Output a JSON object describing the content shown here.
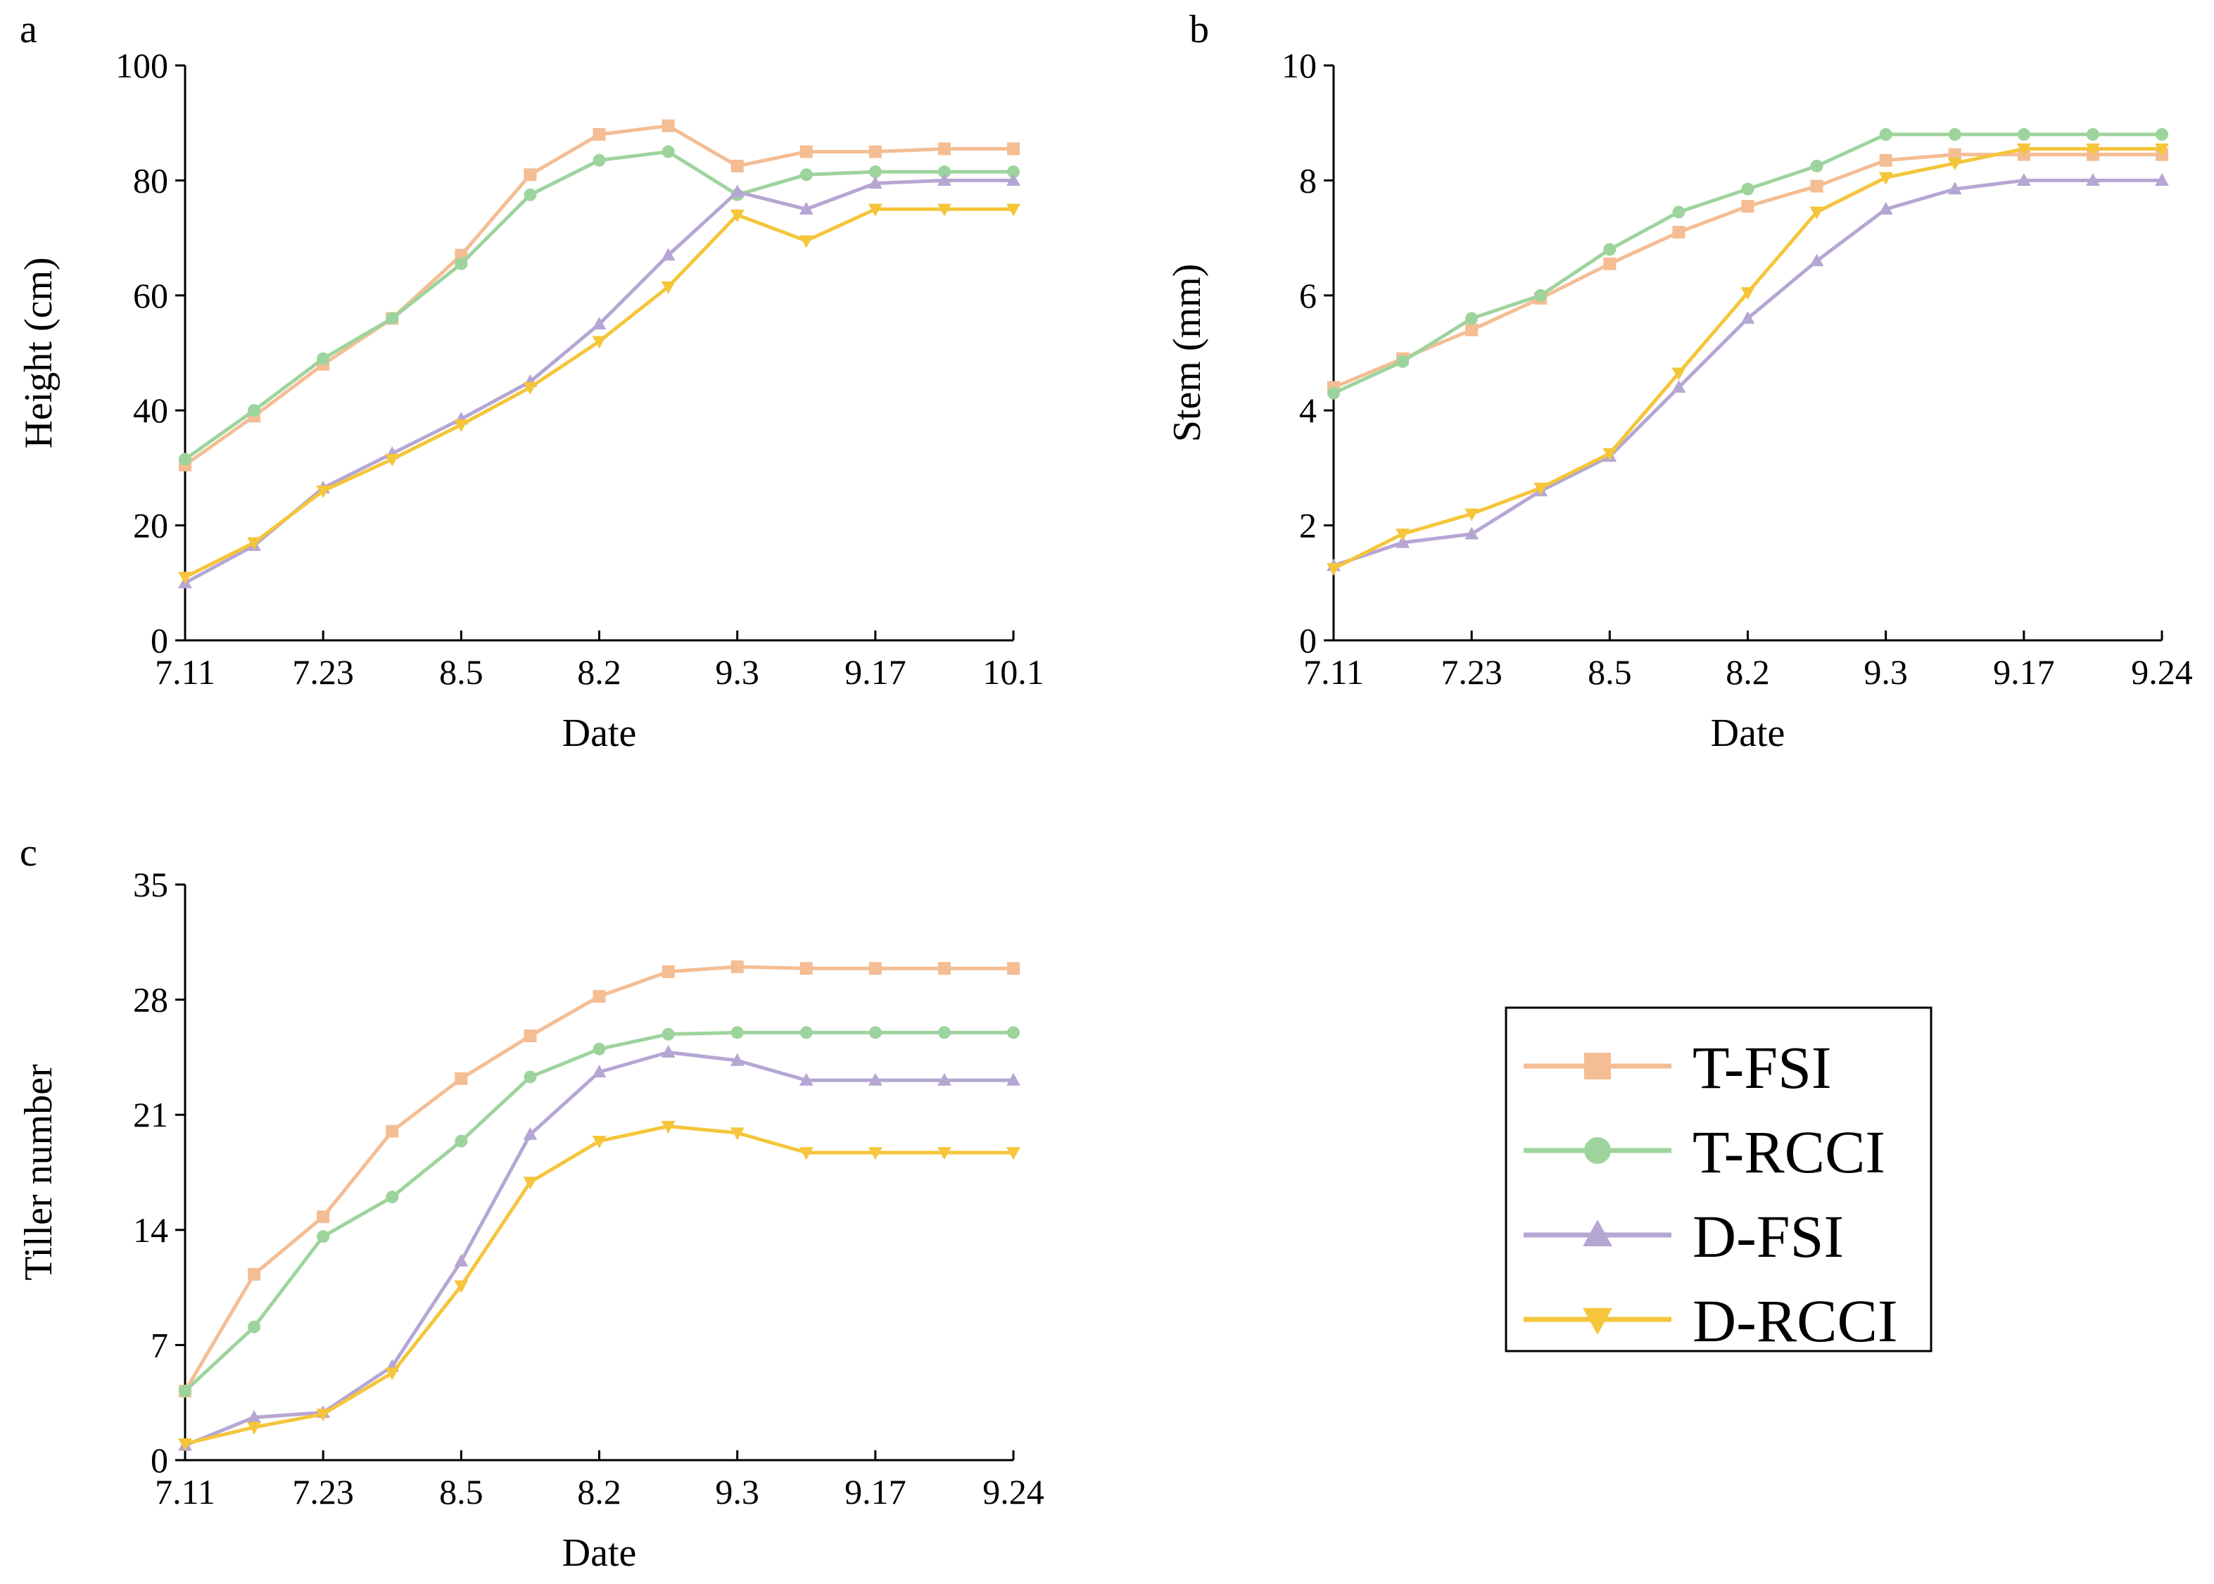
{
  "colors": {
    "T-FSI": "#F4BD93",
    "T-RCCI": "#9DD49D",
    "D-FSI": "#B5A6D3",
    "D-RCCI": "#F5C53A"
  },
  "markers": {
    "T-FSI": "square",
    "T-RCCI": "circle",
    "D-FSI": "triangle-up",
    "D-RCCI": "triangle-down"
  },
  "legend": {
    "entries": [
      "T-FSI",
      "T-RCCI",
      "D-FSI",
      "D-RCCI"
    ]
  },
  "chart_data": [
    {
      "panel": "a",
      "type": "line",
      "xlabel": "Date",
      "ylabel": "Height (cm)",
      "ylim": [
        0,
        100
      ],
      "yticks": [
        0,
        20,
        40,
        60,
        80,
        100
      ],
      "x": [
        0,
        1,
        2,
        3,
        4,
        5,
        6,
        7,
        8,
        9,
        10,
        11,
        12
      ],
      "xlim": [
        0,
        12
      ],
      "xtick_positions": [
        0,
        2,
        4,
        6,
        8,
        10,
        12
      ],
      "xtick_labels": [
        "7.11",
        "7.23",
        "8.5",
        "8.2",
        "9.3",
        "9.17",
        "10.1"
      ],
      "series": [
        {
          "name": "T-FSI",
          "values": [
            30.5,
            39,
            48,
            56,
            67,
            81,
            88,
            89.5,
            82.5,
            85,
            85,
            85.5,
            85.5
          ]
        },
        {
          "name": "T-RCCI",
          "values": [
            31.5,
            40,
            49,
            56,
            65.5,
            77.5,
            83.5,
            85,
            77.5,
            81,
            81.5,
            81.5,
            81.5
          ]
        },
        {
          "name": "D-FSI",
          "values": [
            10,
            16.5,
            26.5,
            32.5,
            38.5,
            45,
            55,
            67,
            78,
            75,
            79.5,
            80,
            80
          ]
        },
        {
          "name": "D-RCCI",
          "values": [
            11,
            17,
            26,
            31.5,
            37.5,
            44,
            52,
            61.5,
            74,
            69.5,
            75,
            75,
            75
          ]
        }
      ]
    },
    {
      "panel": "b",
      "type": "line",
      "xlabel": "Date",
      "ylabel": "Stem (mm)",
      "ylim": [
        0,
        10
      ],
      "yticks": [
        0,
        2,
        4,
        6,
        8,
        10
      ],
      "x": [
        0,
        1,
        2,
        3,
        4,
        5,
        6,
        7,
        8,
        9,
        10,
        11,
        12
      ],
      "xlim": [
        0,
        12
      ],
      "xtick_positions": [
        0,
        2,
        4,
        6,
        8,
        10,
        12
      ],
      "xtick_labels": [
        "7.11",
        "7.23",
        "8.5",
        "8.2",
        "9.3",
        "9.17",
        "9.24"
      ],
      "series": [
        {
          "name": "T-FSI",
          "values": [
            4.4,
            4.9,
            5.4,
            5.95,
            6.55,
            7.1,
            7.55,
            7.9,
            8.35,
            8.45,
            8.45,
            8.45,
            8.45
          ]
        },
        {
          "name": "T-RCCI",
          "values": [
            4.3,
            4.85,
            5.6,
            6.0,
            6.8,
            7.45,
            7.85,
            8.25,
            8.8,
            8.8,
            8.8,
            8.8,
            8.8
          ]
        },
        {
          "name": "D-FSI",
          "values": [
            1.3,
            1.7,
            1.85,
            2.6,
            3.2,
            4.4,
            5.6,
            6.6,
            7.5,
            7.85,
            8.0,
            8.0,
            8.0
          ]
        },
        {
          "name": "D-RCCI",
          "values": [
            1.25,
            1.85,
            2.2,
            2.65,
            3.25,
            4.65,
            6.05,
            7.45,
            8.05,
            8.3,
            8.55,
            8.55,
            8.55
          ]
        }
      ]
    },
    {
      "panel": "c",
      "type": "line",
      "xlabel": "Date",
      "ylabel": "Tiller number",
      "ylim": [
        0,
        35
      ],
      "yticks": [
        0,
        7,
        14,
        21,
        28,
        35
      ],
      "x": [
        0,
        1,
        2,
        3,
        4,
        5,
        6,
        7,
        8,
        9,
        10,
        11,
        12
      ],
      "xlim": [
        0,
        12
      ],
      "xtick_positions": [
        0,
        2,
        4,
        6,
        8,
        10,
        12
      ],
      "xtick_labels": [
        "7.11",
        "7.23",
        "8.5",
        "8.2",
        "9.3",
        "9.17",
        "9.24"
      ],
      "series": [
        {
          "name": "T-FSI",
          "values": [
            4.2,
            11.3,
            14.8,
            20,
            23.2,
            25.8,
            28.2,
            29.7,
            30,
            29.9,
            29.9,
            29.9,
            29.9
          ]
        },
        {
          "name": "T-RCCI",
          "values": [
            4.2,
            8.1,
            13.6,
            16,
            19.4,
            23.3,
            25,
            25.9,
            26,
            26,
            26,
            26,
            26
          ]
        },
        {
          "name": "D-FSI",
          "values": [
            0.9,
            2.6,
            2.9,
            5.7,
            12.1,
            19.8,
            23.6,
            24.8,
            24.3,
            23.1,
            23.1,
            23.1,
            23.1
          ]
        },
        {
          "name": "D-RCCI",
          "values": [
            1.0,
            2.0,
            2.8,
            5.3,
            10.6,
            16.9,
            19.4,
            20.3,
            19.9,
            18.7,
            18.7,
            18.7,
            18.7
          ]
        }
      ]
    }
  ]
}
